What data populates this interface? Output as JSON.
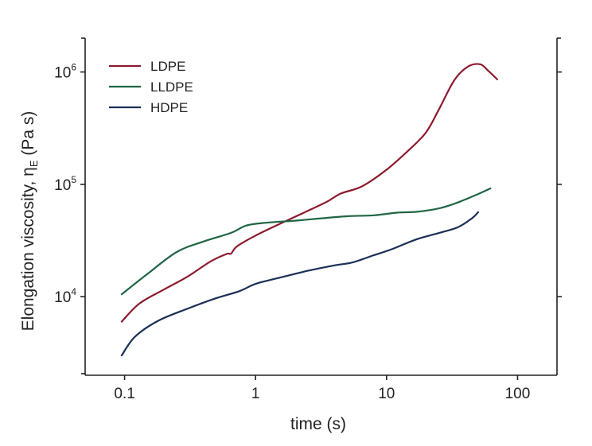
{
  "chart_data": {
    "type": "line",
    "xlabel": "time (s)",
    "ylabel_main": "Elongation viscosity, η",
    "ylabel_sub": "E",
    "ylabel_unit": " (Pa s)",
    "x_scale": "log",
    "y_scale": "log",
    "xlim": [
      0.05,
      200
    ],
    "ylim": [
      2000,
      2000000
    ],
    "x_ticks": [
      {
        "value": 0.1,
        "label": "0.1"
      },
      {
        "value": 1,
        "label": "1"
      },
      {
        "value": 10,
        "label": "10"
      },
      {
        "value": 100,
        "label": "100"
      }
    ],
    "y_ticks": [
      {
        "value": 10000,
        "base": "10",
        "exp": "4"
      },
      {
        "value": 100000,
        "base": "10",
        "exp": "5"
      },
      {
        "value": 1000000,
        "base": "10",
        "exp": "6"
      }
    ],
    "legend_position": "top-left",
    "series": [
      {
        "name": "LDPE",
        "color": "#8c1a2e",
        "points": [
          [
            0.095,
            6000
          ],
          [
            0.13,
            8700
          ],
          [
            0.2,
            11600
          ],
          [
            0.3,
            15000
          ],
          [
            0.45,
            20500
          ],
          [
            0.6,
            24000
          ],
          [
            0.65,
            24200
          ],
          [
            0.72,
            28000
          ],
          [
            1.0,
            35000
          ],
          [
            1.5,
            44000
          ],
          [
            2.5,
            58000
          ],
          [
            3.5,
            70000
          ],
          [
            4.5,
            83000
          ],
          [
            6.5,
            96000
          ],
          [
            10,
            135000
          ],
          [
            15,
            205000
          ],
          [
            20,
            290000
          ],
          [
            25,
            460000
          ],
          [
            33,
            850000
          ],
          [
            42,
            1120000
          ],
          [
            52,
            1170000
          ],
          [
            60,
            1020000
          ],
          [
            70,
            860000
          ]
        ]
      },
      {
        "name": "LLDPE",
        "color": "#1f6645",
        "points": [
          [
            0.095,
            10500
          ],
          [
            0.15,
            16000
          ],
          [
            0.25,
            25000
          ],
          [
            0.4,
            31000
          ],
          [
            0.65,
            37000
          ],
          [
            0.85,
            43000
          ],
          [
            1.2,
            45500
          ],
          [
            2,
            47500
          ],
          [
            3,
            49500
          ],
          [
            5,
            52000
          ],
          [
            8,
            53000
          ],
          [
            12,
            56000
          ],
          [
            17,
            57000
          ],
          [
            25,
            61000
          ],
          [
            35,
            69000
          ],
          [
            50,
            82000
          ],
          [
            62,
            92000
          ]
        ]
      },
      {
        "name": "HDPE",
        "color": "#1a2f55",
        "points": [
          [
            0.095,
            3000
          ],
          [
            0.12,
            4400
          ],
          [
            0.18,
            6100
          ],
          [
            0.3,
            7800
          ],
          [
            0.5,
            9700
          ],
          [
            0.75,
            11200
          ],
          [
            1.0,
            13000
          ],
          [
            1.5,
            14700
          ],
          [
            2.5,
            17000
          ],
          [
            4,
            19000
          ],
          [
            5.5,
            20200
          ],
          [
            8,
            23400
          ],
          [
            11,
            26500
          ],
          [
            17,
            32500
          ],
          [
            25,
            36800
          ],
          [
            35,
            41500
          ],
          [
            45,
            50000
          ],
          [
            50,
            56500
          ]
        ]
      }
    ]
  }
}
